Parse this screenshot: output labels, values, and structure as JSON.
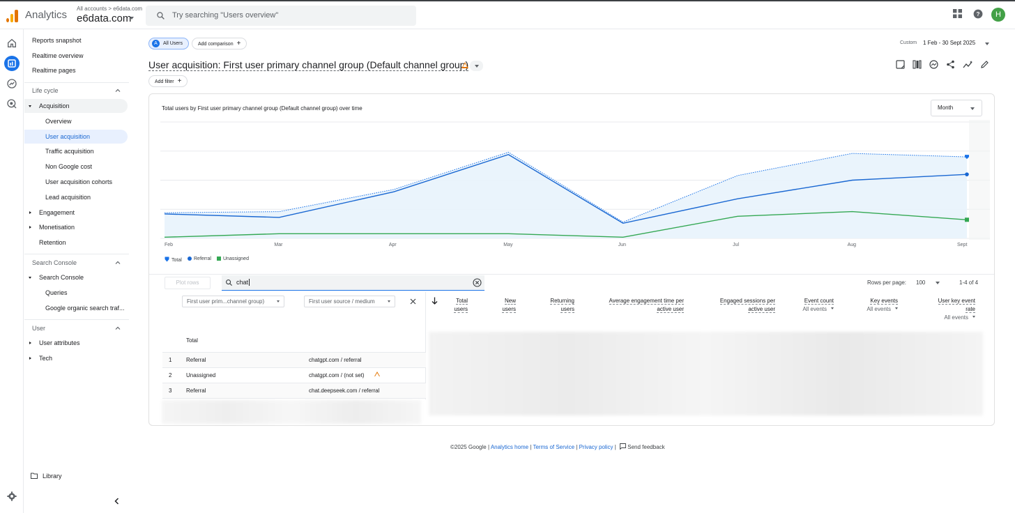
{
  "topbar": {
    "app_title": "Analytics",
    "breadcrumb_all": "All accounts",
    "breadcrumb_sep": ">",
    "breadcrumb_property": "e6data.com",
    "account_name": "e6data.com",
    "search_placeholder": "Try searching \"Users overview\"",
    "avatar_letter": "H"
  },
  "nav": {
    "items": [
      {
        "label": "Reports snapshot"
      },
      {
        "label": "Realtime overview"
      },
      {
        "label": "Realtime pages"
      }
    ],
    "life_cycle": "Life cycle",
    "acquisition": "Acquisition",
    "acquisition_items": [
      {
        "label": "Overview"
      },
      {
        "label": "User acquisition"
      },
      {
        "label": "Traffic acquisition"
      },
      {
        "label": "Non Google cost"
      },
      {
        "label": "User acquisition cohorts"
      },
      {
        "label": "Lead acquisition"
      }
    ],
    "engagement": "Engagement",
    "monetisation": "Monetisation",
    "retention": "Retention",
    "search_console_section": "Search Console",
    "search_console": "Search Console",
    "sc_items": [
      {
        "label": "Queries"
      },
      {
        "label": "Google organic search traf..."
      }
    ],
    "user_section": "User",
    "user_attributes": "User attributes",
    "tech": "Tech",
    "library": "Library"
  },
  "header": {
    "chip_all_users": "All Users",
    "chip_avatar": "A",
    "chip_add_comparison": "Add comparison",
    "date_custom": "Custom",
    "date_range": "1 Feb - 30 Sept 2025",
    "title": "User acquisition: First user primary channel group (Default channel group)",
    "add_filter": "Add filter"
  },
  "chart": {
    "title": "Total users by First user primary channel group (Default channel group) over time",
    "granularity": "Month",
    "legend": [
      "Total",
      "Referral",
      "Unassigned"
    ]
  },
  "chart_data": {
    "type": "line",
    "title": "Total users by First user primary channel group (Default channel group) over time",
    "x": [
      "Feb",
      "Mar",
      "Apr",
      "May",
      "Jun",
      "Jul",
      "Aug",
      "Sept"
    ],
    "series": [
      {
        "name": "Total",
        "values": [
          0.22,
          0.23,
          0.42,
          0.74,
          0.14,
          0.54,
          0.73,
          0.7
        ],
        "color": "#1a73e8"
      },
      {
        "name": "Referral",
        "values": [
          0.21,
          0.18,
          0.4,
          0.72,
          0.13,
          0.34,
          0.5,
          0.55
        ],
        "color": "#1967d2"
      },
      {
        "name": "Unassigned",
        "values": [
          0.01,
          0.04,
          0.04,
          0.04,
          0.01,
          0.19,
          0.23,
          0.16
        ],
        "color": "#34a853"
      }
    ],
    "ylim": [
      0,
      1
    ],
    "grid": true,
    "legend_position": "bottom-left"
  },
  "table": {
    "plot_rows": "Plot rows",
    "search_value": "chat",
    "rows_per_page_label": "Rows per page:",
    "rows_per_page": "100",
    "range": "1-4 of 4",
    "dim1": "First user prim...channel group)",
    "dim2": "First user source / medium",
    "columns": [
      {
        "l1": "Total",
        "l2": "users",
        "sub": ""
      },
      {
        "l1": "New",
        "l2": "users",
        "sub": ""
      },
      {
        "l1": "Returning",
        "l2": "users",
        "sub": ""
      },
      {
        "l1": "Average engagement time per",
        "l2": "active user",
        "sub": ""
      },
      {
        "l1": "Engaged sessions per",
        "l2": "active user",
        "sub": ""
      },
      {
        "l1": "Event count",
        "l2": "",
        "sub": "All events"
      },
      {
        "l1": "Key events",
        "l2": "",
        "sub": "All events"
      },
      {
        "l1": "User key event",
        "l2": "rate",
        "sub": "All events"
      }
    ],
    "total_label": "Total",
    "rows": [
      {
        "n": "1",
        "channel": "Referral",
        "source": "chatgpt.com / referral"
      },
      {
        "n": "2",
        "channel": "Unassigned",
        "source": "chatgpt.com / (not set)"
      },
      {
        "n": "3",
        "channel": "Referral",
        "source": "chat.deepseek.com / referral"
      }
    ]
  },
  "footer": {
    "copyright": "©2025 Google",
    "analytics_home": "Analytics home",
    "terms": "Terms of Service",
    "privacy": "Privacy policy",
    "feedback": "Send feedback",
    "sep": "|"
  }
}
